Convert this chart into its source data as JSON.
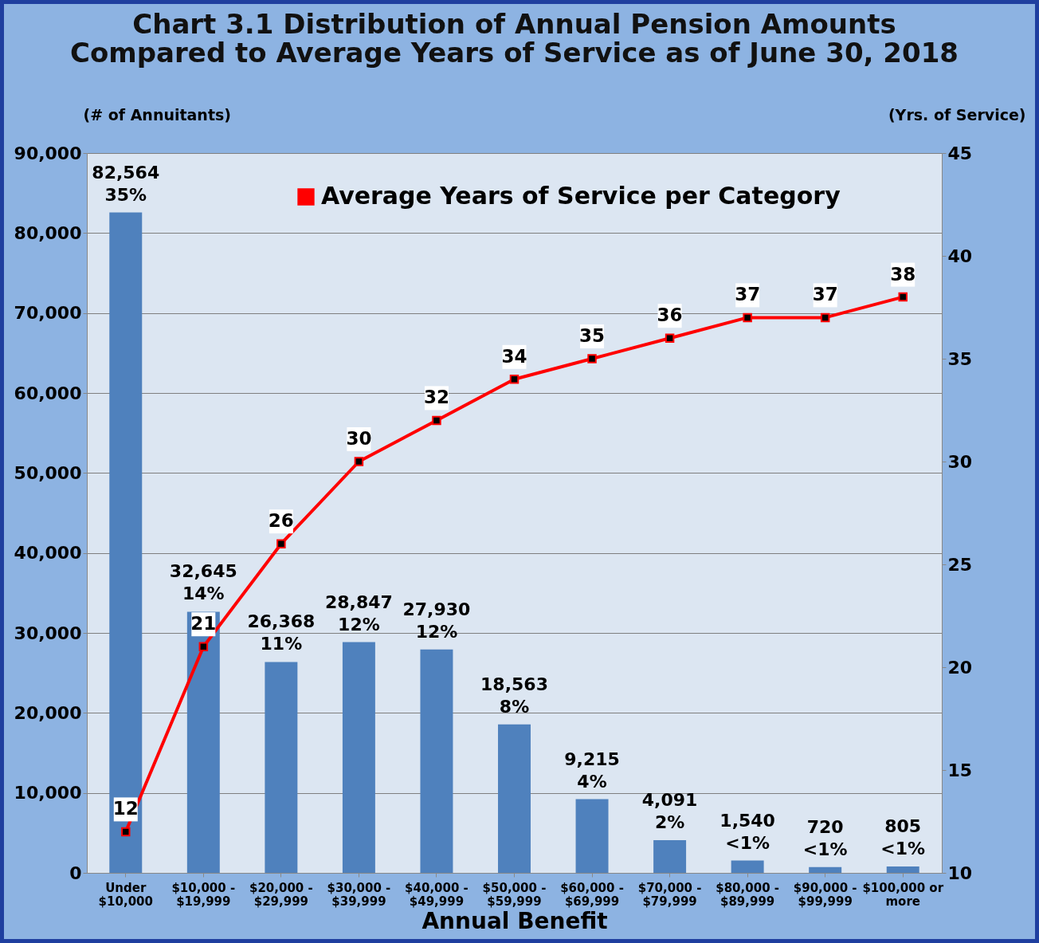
{
  "chart_data": {
    "type": "bar",
    "title": "Chart 3.1    Distribution of Annual Pension Amounts\nCompared to Average Years of Service as of June 30, 2018",
    "xlabel": "Annual Benefit",
    "ylabel": "(# of Annuitants)",
    "y2label": "(Yrs. of Service)",
    "categories": [
      "Under $10,000",
      "$10,000 - $19,999",
      "$20,000 - $29,999",
      "$30,000 - $39,999",
      "$40,000 - $49,999",
      "$50,000 - $59,999",
      "$60,000 - $69,999",
      "$70,000 - $79,999",
      "$80,000 - $89,999",
      "$90,000 - $99,999",
      "$100,000 or more"
    ],
    "series": [
      {
        "color": "#4f81bd",
        "values": [
          82564,
          32645,
          26368,
          28847,
          27930,
          18563,
          9215,
          4091,
          1540,
          720,
          805
        ],
        "value_labels": [
          "82,564\n35%",
          "32,645\n14%",
          "26,368\n11%",
          "28,847\n12%",
          "27,930\n12%",
          "18,563\n8%",
          "9,215\n4%",
          "4,091\n2%",
          "1,540\n<1%",
          "720\n<1%",
          "805\n<1%"
        ]
      },
      {
        "type": "line",
        "axis": "y2",
        "name": "Average Years of Service per Category",
        "color": "#ff0000",
        "marker": "square",
        "data_labels": true,
        "values": [
          12,
          21,
          26,
          30,
          32,
          34,
          35,
          36,
          37,
          37,
          38
        ]
      }
    ],
    "ylim": [
      0,
      90000
    ],
    "yticks": [
      {
        "value": 0,
        "label": "0"
      },
      {
        "value": 10000,
        "label": "10,000"
      },
      {
        "value": 20000,
        "label": "20,000"
      },
      {
        "value": 30000,
        "label": "30,000"
      },
      {
        "value": 40000,
        "label": "40,000"
      },
      {
        "value": 50000,
        "label": "50,000"
      },
      {
        "value": 60000,
        "label": "60,000"
      },
      {
        "value": 70000,
        "label": "70,000"
      },
      {
        "value": 80000,
        "label": "80,000"
      },
      {
        "value": 90000,
        "label": "90,000"
      }
    ],
    "y2lim": [
      10,
      45
    ],
    "y2ticks": [
      10,
      15,
      20,
      25,
      30,
      35,
      40,
      45
    ],
    "grid": "y",
    "legend": "top"
  }
}
